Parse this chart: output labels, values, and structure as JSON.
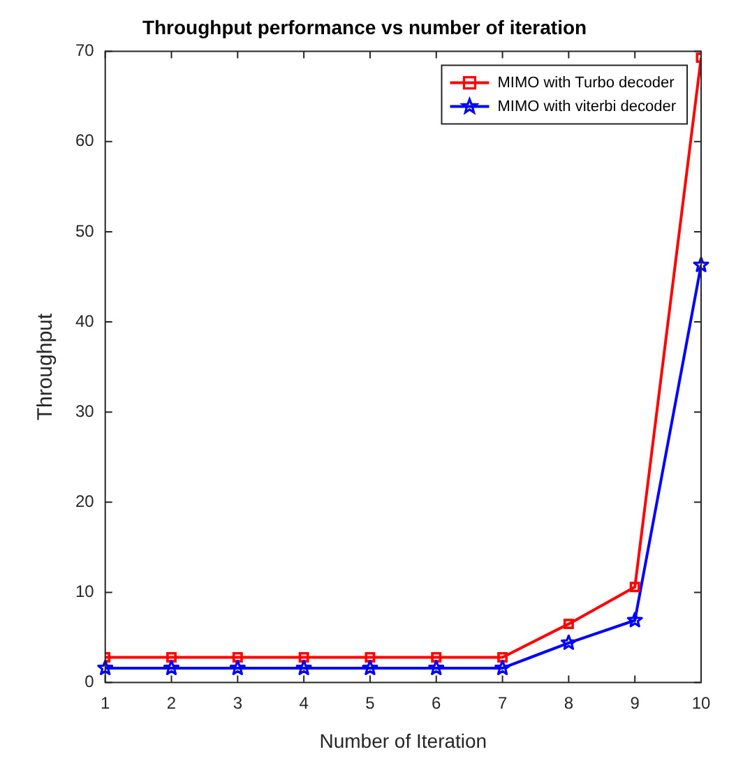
{
  "chart_data": {
    "type": "line",
    "title": "Throughput performance vs number of iteration",
    "xlabel": "Number of Iteration",
    "ylabel": "Throughput",
    "x": [
      1,
      2,
      3,
      4,
      5,
      6,
      7,
      8,
      9,
      10
    ],
    "series": [
      {
        "name": "MIMO with Turbo decoder",
        "color": "#ff0000",
        "marker": "square",
        "values": [
          2.8,
          2.8,
          2.8,
          2.8,
          2.8,
          2.8,
          2.8,
          6.5,
          10.6,
          69.3
        ]
      },
      {
        "name": "MIMO with viterbi decoder",
        "color": "#0000ff",
        "marker": "star",
        "values": [
          1.6,
          1.6,
          1.6,
          1.6,
          1.6,
          1.6,
          1.6,
          4.4,
          6.9,
          46.3
        ]
      }
    ],
    "xlim": [
      1,
      10
    ],
    "xticks": [
      1,
      2,
      3,
      4,
      5,
      6,
      7,
      8,
      9,
      10
    ],
    "ylim": [
      0,
      70
    ],
    "yticks": [
      0,
      10,
      20,
      30,
      40,
      50,
      60,
      70
    ],
    "grid": false,
    "legend": "top right",
    "line_style": "solid"
  }
}
